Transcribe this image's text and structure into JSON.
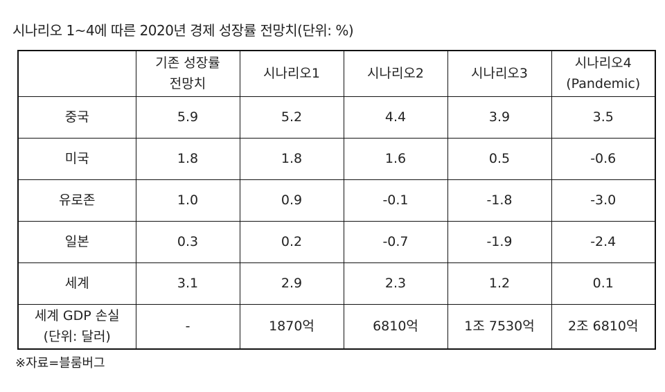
{
  "title": "시나리오 1~4에 따른 2020년 경제 성장률 전망치(단위: %)",
  "table": {
    "header": [
      "기존 성장률\n전망치",
      "시나리오1",
      "시나리오2",
      "시나리오3",
      "시나리오4\n(Pandemic)"
    ],
    "rows": [
      [
        "중국",
        "5.9",
        "5.2",
        "4.4",
        "3.9",
        "3.5"
      ],
      [
        "미국",
        "1.8",
        "1.8",
        "1.6",
        "0.5",
        "-0.6"
      ],
      [
        "유로존",
        "1.0",
        "0.9",
        "-0.1",
        "-1.8",
        "-3.0"
      ],
      [
        "일본",
        "0.3",
        "0.2",
        "-0.7",
        "-1.9",
        "-2.4"
      ],
      [
        "세계",
        "3.1",
        "2.9",
        "2.3",
        "1.2",
        "0.1"
      ],
      [
        "세계 GDP 손실\n(단위: 달러)",
        "-",
        "1870억",
        "6810억",
        "1조 7530억",
        "2조 6810억"
      ]
    ]
  },
  "note": "※자료=블룸버그"
}
